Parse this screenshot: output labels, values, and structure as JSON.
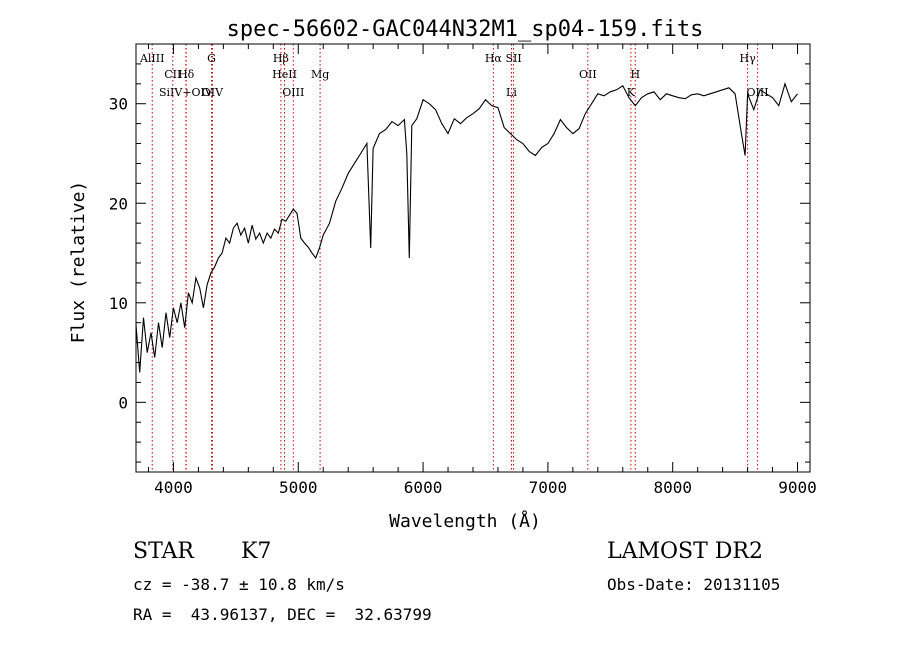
{
  "chart_data": {
    "type": "line",
    "title": "spec-56602-GAC044N32M1_sp04-159.fits",
    "xlabel": "Wavelength (Å)",
    "ylabel": "Flux (relative)",
    "xlim": [
      3700,
      9100
    ],
    "ylim": [
      -7,
      36
    ],
    "xticks": [
      4000,
      5000,
      6000,
      7000,
      8000,
      9000
    ],
    "xtick_labels": [
      "4000",
      "5000",
      "6000",
      "7000",
      "8000",
      "9000"
    ],
    "yticks": [
      0,
      10,
      20,
      30
    ],
    "ytick_labels": [
      "0",
      "10",
      "20",
      "30"
    ],
    "grid": false,
    "series": [
      {
        "x": [
          3700,
          3730,
          3760,
          3790,
          3820,
          3850,
          3880,
          3910,
          3940,
          3970,
          4000,
          4030,
          4060,
          4090,
          4120,
          4150,
          4180,
          4210,
          4240,
          4270,
          4300,
          4330,
          4360,
          4390,
          4420,
          4450,
          4480,
          4510,
          4540,
          4570,
          4600,
          4630,
          4660,
          4690,
          4720,
          4750,
          4780,
          4810,
          4840,
          4870,
          4900,
          4930,
          4960,
          4990,
          5020,
          5050,
          5080,
          5110,
          5140,
          5170,
          5200,
          5250,
          5300,
          5350,
          5400,
          5450,
          5500,
          5550,
          5580,
          5600,
          5650,
          5700,
          5750,
          5800,
          5850,
          5870,
          5890,
          5910,
          5950,
          6000,
          6050,
          6100,
          6150,
          6200,
          6250,
          6300,
          6350,
          6400,
          6450,
          6500,
          6550,
          6600,
          6650,
          6700,
          6750,
          6800,
          6850,
          6900,
          6950,
          7000,
          7050,
          7100,
          7150,
          7200,
          7250,
          7300,
          7350,
          7400,
          7450,
          7500,
          7550,
          7600,
          7650,
          7700,
          7750,
          7800,
          7850,
          7900,
          7950,
          8000,
          8050,
          8100,
          8150,
          8200,
          8250,
          8300,
          8350,
          8400,
          8450,
          8500,
          8550,
          8580,
          8600,
          8650,
          8700,
          8750,
          8800,
          8850,
          8900,
          8950,
          9000
        ],
        "y": [
          7.8,
          3.0,
          8.5,
          5.0,
          7.0,
          4.5,
          8.0,
          5.5,
          9.0,
          6.5,
          9.5,
          8.0,
          10.0,
          7.5,
          11.0,
          10.0,
          12.5,
          11.5,
          9.5,
          11.8,
          13.0,
          13.6,
          14.5,
          15.0,
          16.5,
          16.0,
          17.5,
          18.0,
          16.8,
          17.5,
          16.0,
          17.8,
          16.4,
          17.0,
          16.0,
          17.0,
          16.5,
          17.4,
          17.0,
          18.4,
          18.2,
          18.8,
          19.4,
          19.0,
          16.5,
          16.0,
          15.6,
          15.0,
          14.5,
          15.5,
          16.8,
          18.0,
          20.2,
          21.5,
          23.0,
          24.0,
          25.0,
          26.0,
          15.5,
          25.5,
          27.0,
          27.4,
          28.2,
          27.8,
          28.4,
          25.0,
          14.5,
          27.8,
          28.5,
          30.4,
          30.0,
          29.4,
          28.0,
          27.0,
          28.5,
          28.0,
          28.6,
          29.0,
          29.5,
          30.4,
          29.8,
          29.6,
          27.6,
          27.0,
          26.4,
          26.0,
          25.2,
          24.8,
          25.6,
          26.0,
          27.0,
          28.4,
          27.6,
          27.0,
          27.5,
          29.0,
          30.0,
          31.0,
          30.8,
          31.2,
          31.4,
          31.8,
          30.6,
          29.8,
          30.6,
          31.0,
          31.2,
          30.4,
          31.0,
          30.8,
          30.6,
          30.5,
          30.9,
          31.0,
          30.8,
          31.0,
          31.2,
          31.4,
          31.6,
          31.0,
          27.0,
          24.8,
          31.0,
          29.4,
          31.4,
          31.0,
          30.6,
          29.8,
          32.0,
          30.2,
          31.0
        ]
      }
    ],
    "lines": [
      {
        "label": "AlIII",
        "wavelength": 3830
      },
      {
        "label": "CII",
        "wavelength": 3995
      },
      {
        "label": "SiIV+OIV",
        "wavelength": 4100
      },
      {
        "label": "Hδ",
        "wavelength": 4102
      },
      {
        "label": "G",
        "wavelength": 4305
      },
      {
        "label": "OIV",
        "wavelength": 4312
      },
      {
        "label": "Hβ",
        "wavelength": 4861
      },
      {
        "label": "HeII",
        "wavelength": 4890
      },
      {
        "label": "OIII",
        "wavelength": 4960
      },
      {
        "label": "Mg",
        "wavelength": 5175
      },
      {
        "label": "Hα",
        "wavelength": 6563
      },
      {
        "label": "Li",
        "wavelength": 6708
      },
      {
        "label": "SII",
        "wavelength": 6725
      },
      {
        "label": "OII",
        "wavelength": 7320
      },
      {
        "label": "K",
        "wavelength": 7665
      },
      {
        "label": "H",
        "wavelength": 7700
      },
      {
        "label": "Hγ",
        "wavelength": 8600
      },
      {
        "label": "OIII",
        "wavelength": 8680
      }
    ]
  },
  "info": {
    "class": "STAR",
    "subclass": "K7",
    "survey": "LAMOST DR2",
    "cz": "cz = -38.7 ± 10.8 km/s",
    "obs_date": "Obs-Date: 20131105",
    "coords": "RA =  43.96137, DEC =  32.63799"
  }
}
